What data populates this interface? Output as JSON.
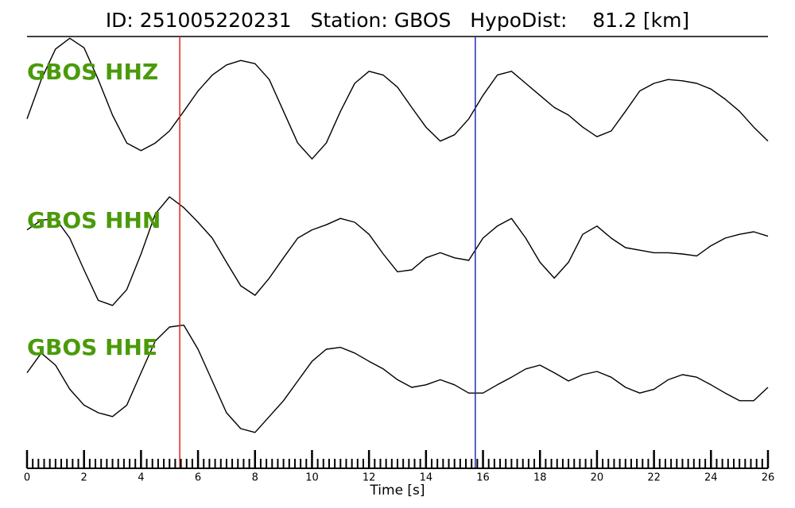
{
  "chart_data": {
    "type": "line",
    "title": "ID: 251005220231   Station: GBOS   HypoDist:    81.2 [km]",
    "xlabel": "Time [s]",
    "xlim": [
      0,
      26
    ],
    "xticks": [
      0,
      2,
      4,
      6,
      8,
      10,
      12,
      14,
      16,
      18,
      20,
      22,
      24,
      26
    ],
    "minor_tick_step": 0.2,
    "ylim": [
      -1,
      1
    ],
    "label_color": "#4a9a0a",
    "vlines": [
      {
        "x": 5.36,
        "color": "#e8201c"
      },
      {
        "x": 15.73,
        "color": "#1f2fb0"
      }
    ],
    "x": [
      0,
      0.5,
      1,
      1.5,
      2,
      2.5,
      3,
      3.5,
      4,
      4.5,
      5,
      5.5,
      6,
      6.5,
      7,
      7.5,
      8,
      8.5,
      9,
      9.5,
      10,
      10.5,
      11,
      11.5,
      12,
      12.5,
      13,
      13.5,
      14,
      14.5,
      15,
      15.5,
      16,
      16.5,
      17,
      17.5,
      18,
      18.5,
      19,
      19.5,
      20,
      20.5,
      21,
      21.5,
      22,
      22.5,
      23,
      23.5,
      24,
      24.5,
      25,
      25.5,
      26
    ],
    "panels": [
      {
        "name": "GBOS HHZ",
        "color": "#000000",
        "values": [
          -0.31,
          0.31,
          0.79,
          0.96,
          0.81,
          0.31,
          -0.25,
          -0.69,
          -0.81,
          -0.69,
          -0.5,
          -0.19,
          0.13,
          0.38,
          0.54,
          0.61,
          0.56,
          0.31,
          -0.19,
          -0.69,
          -0.94,
          -0.69,
          -0.19,
          0.25,
          0.44,
          0.38,
          0.19,
          -0.13,
          -0.44,
          -0.66,
          -0.56,
          -0.31,
          0.06,
          0.38,
          0.44,
          0.25,
          0.06,
          -0.13,
          -0.25,
          -0.44,
          -0.59,
          -0.5,
          -0.19,
          0.13,
          0.25,
          0.31,
          0.29,
          0.25,
          0.16,
          0,
          -0.19,
          -0.44,
          -0.66
        ]
      },
      {
        "name": "GBOS HHN",
        "color": "#000000",
        "values": [
          0.28,
          0.43,
          0.46,
          0.15,
          -0.35,
          -0.83,
          -0.91,
          -0.66,
          -0.1,
          0.53,
          0.8,
          0.63,
          0.4,
          0.15,
          -0.23,
          -0.6,
          -0.75,
          -0.48,
          -0.16,
          0.15,
          0.28,
          0.36,
          0.46,
          0.4,
          0.21,
          -0.1,
          -0.38,
          -0.35,
          -0.16,
          -0.08,
          -0.16,
          -0.2,
          0.15,
          0.34,
          0.46,
          0.15,
          -0.23,
          -0.48,
          -0.23,
          0.21,
          0.34,
          0.15,
          0,
          -0.04,
          -0.08,
          -0.08,
          -0.1,
          -0.13,
          0.03,
          0.15,
          0.21,
          0.25,
          0.18
        ]
      },
      {
        "name": "GBOS HHE",
        "color": "#000000",
        "values": [
          0.03,
          0.34,
          0.15,
          -0.23,
          -0.48,
          -0.6,
          -0.66,
          -0.48,
          0.03,
          0.53,
          0.75,
          0.78,
          0.4,
          -0.1,
          -0.6,
          -0.85,
          -0.91,
          -0.66,
          -0.41,
          -0.1,
          0.21,
          0.4,
          0.43,
          0.34,
          0.21,
          0.09,
          -0.08,
          -0.2,
          -0.16,
          -0.08,
          -0.16,
          -0.29,
          -0.29,
          -0.16,
          -0.04,
          0.09,
          0.15,
          0.03,
          -0.1,
          0,
          0.05,
          -0.04,
          -0.2,
          -0.29,
          -0.23,
          -0.08,
          0,
          -0.04,
          -0.16,
          -0.29,
          -0.41,
          -0.41,
          -0.2
        ]
      }
    ]
  }
}
